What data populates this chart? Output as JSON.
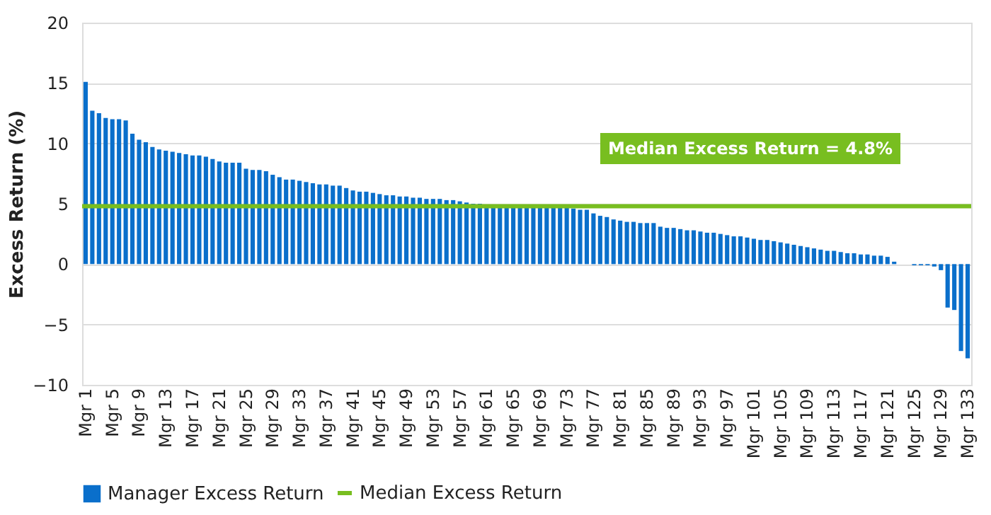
{
  "chart_data": {
    "type": "bar",
    "ylabel": "Excess Return (%)",
    "categories": [
      "Mgr 1",
      null,
      null,
      null,
      "Mgr 5",
      null,
      null,
      null,
      "Mgr 9",
      null,
      null,
      null,
      "Mgr 13",
      null,
      null,
      null,
      "Mgr 17",
      null,
      null,
      null,
      "Mgr 21",
      null,
      null,
      null,
      "Mgr 25",
      null,
      null,
      null,
      "Mgr 29",
      null,
      null,
      null,
      "Mgr 33",
      null,
      null,
      null,
      "Mgr 37",
      null,
      null,
      null,
      "Mgr 41",
      null,
      null,
      null,
      "Mgr 45",
      null,
      null,
      null,
      "Mgr 49",
      null,
      null,
      null,
      "Mgr 53",
      null,
      null,
      null,
      "Mgr 57",
      null,
      null,
      null,
      "Mgr 61",
      null,
      null,
      null,
      "Mgr 65",
      null,
      null,
      null,
      "Mgr 69",
      null,
      null,
      null,
      "Mgr 73",
      null,
      null,
      null,
      "Mgr 77",
      null,
      null,
      null,
      "Mgr 81",
      null,
      null,
      null,
      "Mgr 85",
      null,
      null,
      null,
      "Mgr 89",
      null,
      null,
      null,
      "Mgr 93",
      null,
      null,
      null,
      "Mgr 97",
      null,
      null,
      null,
      "Mgr 101",
      null,
      null,
      null,
      "Mgr 105",
      null,
      null,
      null,
      "Mgr 109",
      null,
      null,
      null,
      "Mgr 113",
      null,
      null,
      null,
      "Mgr 117",
      null,
      null,
      null,
      "Mgr 121",
      null,
      null,
      null,
      "Mgr 125",
      null,
      null,
      null,
      "Mgr 129",
      null,
      null,
      null,
      "Mgr 133"
    ],
    "series": [
      {
        "name": "Manager Excess Return",
        "color": "#0a6fcb",
        "values": [
          15.1,
          12.7,
          12.5,
          12.1,
          12.0,
          12.0,
          11.9,
          10.8,
          10.3,
          10.1,
          9.7,
          9.5,
          9.4,
          9.3,
          9.2,
          9.1,
          9.0,
          9.0,
          8.9,
          8.7,
          8.5,
          8.4,
          8.4,
          8.4,
          7.9,
          7.8,
          7.8,
          7.7,
          7.4,
          7.2,
          7.0,
          7.0,
          6.9,
          6.8,
          6.7,
          6.6,
          6.6,
          6.5,
          6.5,
          6.3,
          6.1,
          6.0,
          6.0,
          5.9,
          5.8,
          5.7,
          5.7,
          5.6,
          5.6,
          5.5,
          5.5,
          5.4,
          5.4,
          5.4,
          5.3,
          5.3,
          5.2,
          5.1,
          5.0,
          5.0,
          4.9,
          4.9,
          4.9,
          4.8,
          4.8,
          4.8,
          4.8,
          4.8,
          4.8,
          4.8,
          4.8,
          4.7,
          4.7,
          4.6,
          4.5,
          4.5,
          4.2,
          4.0,
          3.9,
          3.7,
          3.6,
          3.5,
          3.5,
          3.4,
          3.4,
          3.4,
          3.1,
          3.0,
          3.0,
          2.9,
          2.8,
          2.8,
          2.7,
          2.6,
          2.6,
          2.5,
          2.4,
          2.3,
          2.3,
          2.2,
          2.1,
          2.0,
          2.0,
          1.9,
          1.8,
          1.7,
          1.6,
          1.5,
          1.4,
          1.3,
          1.2,
          1.1,
          1.1,
          1.0,
          0.9,
          0.9,
          0.8,
          0.8,
          0.7,
          0.7,
          0.6,
          0.2,
          0.0,
          0.0,
          -0.1,
          -0.1,
          -0.1,
          -0.2,
          -0.5,
          -3.6,
          -3.8,
          -7.2,
          -7.8
        ]
      }
    ],
    "ylim": [
      -10,
      20
    ],
    "yticks": [
      -10,
      -5,
      0,
      5,
      10,
      15,
      20
    ],
    "grid": "y",
    "legend": "bottom",
    "ref_lines": [
      {
        "axis": "y",
        "value": 4.8,
        "label": "Median Excess Return",
        "color": "#78be20",
        "line_style": "solid"
      }
    ],
    "annotations": [
      "Median Excess Return = 4.8%"
    ]
  }
}
